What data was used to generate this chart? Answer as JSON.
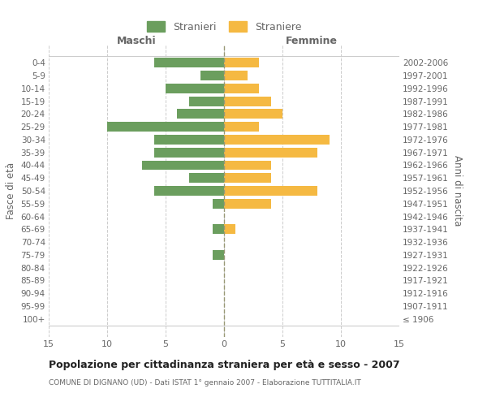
{
  "age_groups": [
    "100+",
    "95-99",
    "90-94",
    "85-89",
    "80-84",
    "75-79",
    "70-74",
    "65-69",
    "60-64",
    "55-59",
    "50-54",
    "45-49",
    "40-44",
    "35-39",
    "30-34",
    "25-29",
    "20-24",
    "15-19",
    "10-14",
    "5-9",
    "0-4"
  ],
  "birth_years": [
    "≤ 1906",
    "1907-1911",
    "1912-1916",
    "1917-1921",
    "1922-1926",
    "1927-1931",
    "1932-1936",
    "1937-1941",
    "1942-1946",
    "1947-1951",
    "1952-1956",
    "1957-1961",
    "1962-1966",
    "1967-1971",
    "1972-1976",
    "1977-1981",
    "1982-1986",
    "1987-1991",
    "1992-1996",
    "1997-2001",
    "2002-2006"
  ],
  "males": [
    0,
    0,
    0,
    0,
    0,
    1,
    0,
    1,
    0,
    1,
    6,
    3,
    7,
    6,
    6,
    10,
    4,
    3,
    5,
    2,
    6
  ],
  "females": [
    0,
    0,
    0,
    0,
    0,
    0,
    0,
    1,
    0,
    4,
    8,
    4,
    4,
    8,
    9,
    3,
    5,
    4,
    3,
    2,
    3
  ],
  "male_color": "#6b9e5e",
  "female_color": "#f5b942",
  "title_main": "Popolazione per cittadinanza straniera per età e sesso - 2007",
  "title_sub": "COMUNE DI DIGNANO (UD) - Dati ISTAT 1° gennaio 2007 - Elaborazione TUTTITALIA.IT",
  "ylabel": "Fasce di età",
  "ylabel_right": "Anni di nascita",
  "xlabel_left": "Maschi",
  "xlabel_right": "Femmine",
  "legend_male": "Stranieri",
  "legend_female": "Straniere",
  "xlim": 15,
  "background_color": "#ffffff",
  "grid_color": "#cccccc",
  "text_color": "#666666",
  "bar_height": 0.75
}
